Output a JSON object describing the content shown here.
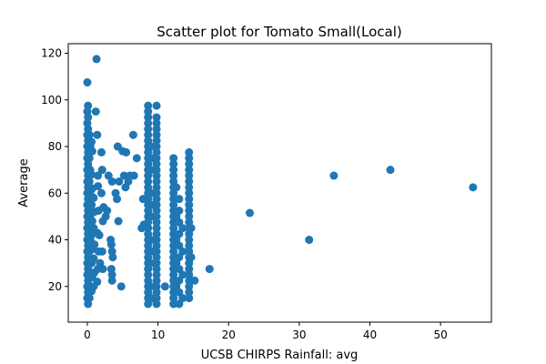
{
  "chart_data": {
    "type": "scatter",
    "title": "Scatter plot for Tomato Small(Local)",
    "xlabel": "UCSB CHIRPS Rainfall: avg",
    "ylabel": "Average",
    "xlim": [
      -2.7,
      57.2
    ],
    "ylim": [
      4.7,
      124.1
    ],
    "xticks": [
      0,
      10,
      20,
      30,
      40,
      50
    ],
    "yticks": [
      20,
      40,
      60,
      80,
      100,
      120
    ],
    "xtick_labels": [
      "0",
      "10",
      "20",
      "30",
      "40",
      "50"
    ],
    "ytick_labels": [
      "20",
      "40",
      "60",
      "80",
      "100",
      "120"
    ],
    "grid": false,
    "legend": "none",
    "marker_color": "#1f77b4",
    "series": [
      {
        "points": [
          [
            0.0,
            107.5
          ],
          [
            0.1,
            97.5
          ],
          [
            0.0,
            95.0
          ],
          [
            0.1,
            92.5
          ],
          [
            0.0,
            90.0
          ],
          [
            0.1,
            87.5
          ],
          [
            0.0,
            85.0
          ],
          [
            0.1,
            82.5
          ],
          [
            0.0,
            80.0
          ],
          [
            0.1,
            77.5
          ],
          [
            0.0,
            75.0
          ],
          [
            0.1,
            72.5
          ],
          [
            0.0,
            70.0
          ],
          [
            0.1,
            67.5
          ],
          [
            0.0,
            65.0
          ],
          [
            0.1,
            62.5
          ],
          [
            0.0,
            60.0
          ],
          [
            0.1,
            57.5
          ],
          [
            0.0,
            55.0
          ],
          [
            0.1,
            52.5
          ],
          [
            0.0,
            50.0
          ],
          [
            0.1,
            47.5
          ],
          [
            0.0,
            45.0
          ],
          [
            0.1,
            42.5
          ],
          [
            0.0,
            40.0
          ],
          [
            0.1,
            37.5
          ],
          [
            0.0,
            35.0
          ],
          [
            0.1,
            32.5
          ],
          [
            0.0,
            30.0
          ],
          [
            0.1,
            27.5
          ],
          [
            0.0,
            25.0
          ],
          [
            0.1,
            22.5
          ],
          [
            0.0,
            20.0
          ],
          [
            0.1,
            17.5
          ],
          [
            0.0,
            15.0
          ],
          [
            0.1,
            12.5
          ],
          [
            0.3,
            85.0
          ],
          [
            0.4,
            80.0
          ],
          [
            0.3,
            75.0
          ],
          [
            0.4,
            70.0
          ],
          [
            0.3,
            65.0
          ],
          [
            0.4,
            60.0
          ],
          [
            0.3,
            55.0
          ],
          [
            0.4,
            50.0
          ],
          [
            0.3,
            45.0
          ],
          [
            0.4,
            40.0
          ],
          [
            0.3,
            35.0
          ],
          [
            0.4,
            30.0
          ],
          [
            0.3,
            25.0
          ],
          [
            0.4,
            20.0
          ],
          [
            0.3,
            15.0
          ],
          [
            0.6,
            82.0
          ],
          [
            0.7,
            78.0
          ],
          [
            0.6,
            68.0
          ],
          [
            0.7,
            62.0
          ],
          [
            0.6,
            55.0
          ],
          [
            0.7,
            48.0
          ],
          [
            0.6,
            42.0
          ],
          [
            0.7,
            36.0
          ],
          [
            0.6,
            30.0
          ],
          [
            0.7,
            24.0
          ],
          [
            0.6,
            18.0
          ],
          [
            0.9,
            58.0
          ],
          [
            1.0,
            52.0
          ],
          [
            0.9,
            45.0
          ],
          [
            1.0,
            38.0
          ],
          [
            0.9,
            32.0
          ],
          [
            1.0,
            26.0
          ],
          [
            0.9,
            20.0
          ],
          [
            1.3,
            117.5
          ],
          [
            1.2,
            95.0
          ],
          [
            1.4,
            85.0
          ],
          [
            1.5,
            67.5
          ],
          [
            1.5,
            63.0
          ],
          [
            1.6,
            52.5
          ],
          [
            1.4,
            43.0
          ],
          [
            1.6,
            35.0
          ],
          [
            1.5,
            27.5
          ],
          [
            1.4,
            22.0
          ],
          [
            1.7,
            42.0
          ],
          [
            1.8,
            30.0
          ],
          [
            2.0,
            77.5
          ],
          [
            2.1,
            70.0
          ],
          [
            2.0,
            60.0
          ],
          [
            2.3,
            54.0
          ],
          [
            2.2,
            48.0
          ],
          [
            2.1,
            35.0
          ],
          [
            2.2,
            27.5
          ],
          [
            2.6,
            50.0
          ],
          [
            2.8,
            52.5
          ],
          [
            3.0,
            67.5
          ],
          [
            3.3,
            40.0
          ],
          [
            3.4,
            38.0
          ],
          [
            3.5,
            65.0
          ],
          [
            3.5,
            35.0
          ],
          [
            3.6,
            32.5
          ],
          [
            3.4,
            27.5
          ],
          [
            3.5,
            25.0
          ],
          [
            3.5,
            22.5
          ],
          [
            4.0,
            60.0
          ],
          [
            4.2,
            57.5
          ],
          [
            4.3,
            80.0
          ],
          [
            4.4,
            48.0
          ],
          [
            4.5,
            65.0
          ],
          [
            4.8,
            20.0
          ],
          [
            5.0,
            78.0
          ],
          [
            5.2,
            67.5
          ],
          [
            5.5,
            77.5
          ],
          [
            5.4,
            62.5
          ],
          [
            5.8,
            65.0
          ],
          [
            6.0,
            67.5
          ],
          [
            6.5,
            85.0
          ],
          [
            6.6,
            67.5
          ],
          [
            7.0,
            75.0
          ],
          [
            7.7,
            45.0
          ],
          [
            8.0,
            46.5
          ],
          [
            7.9,
            57.5
          ],
          [
            8.6,
            97.5
          ],
          [
            8.6,
            95.0
          ],
          [
            8.6,
            92.5
          ],
          [
            8.6,
            90.0
          ],
          [
            8.6,
            87.5
          ],
          [
            8.6,
            85.0
          ],
          [
            8.6,
            82.5
          ],
          [
            8.6,
            80.0
          ],
          [
            8.6,
            77.5
          ],
          [
            8.6,
            75.0
          ],
          [
            8.6,
            72.5
          ],
          [
            8.6,
            70.0
          ],
          [
            8.6,
            67.5
          ],
          [
            8.6,
            65.0
          ],
          [
            8.6,
            62.5
          ],
          [
            8.6,
            60.0
          ],
          [
            8.6,
            57.5
          ],
          [
            8.6,
            55.0
          ],
          [
            8.6,
            52.5
          ],
          [
            8.6,
            50.0
          ],
          [
            8.6,
            47.5
          ],
          [
            8.6,
            45.0
          ],
          [
            8.6,
            42.5
          ],
          [
            8.6,
            40.0
          ],
          [
            8.6,
            37.5
          ],
          [
            8.6,
            35.0
          ],
          [
            8.6,
            32.5
          ],
          [
            8.6,
            30.0
          ],
          [
            8.6,
            27.5
          ],
          [
            8.6,
            25.0
          ],
          [
            8.6,
            22.5
          ],
          [
            8.6,
            20.0
          ],
          [
            8.6,
            17.5
          ],
          [
            8.6,
            15.0
          ],
          [
            8.6,
            12.5
          ],
          [
            9.0,
            80.0
          ],
          [
            9.0,
            70.0
          ],
          [
            9.0,
            60.0
          ],
          [
            9.0,
            50.0
          ],
          [
            9.0,
            40.0
          ],
          [
            9.0,
            30.0
          ],
          [
            9.0,
            20.0
          ],
          [
            9.3,
            75.0
          ],
          [
            9.3,
            55.0
          ],
          [
            9.3,
            35.0
          ],
          [
            9.3,
            15.0
          ],
          [
            9.8,
            97.5
          ],
          [
            9.8,
            92.5
          ],
          [
            9.8,
            90.0
          ],
          [
            9.8,
            87.5
          ],
          [
            9.8,
            85.0
          ],
          [
            9.8,
            82.5
          ],
          [
            9.8,
            80.0
          ],
          [
            9.8,
            77.5
          ],
          [
            9.8,
            75.0
          ],
          [
            9.8,
            72.5
          ],
          [
            9.8,
            70.0
          ],
          [
            9.8,
            67.5
          ],
          [
            9.8,
            65.0
          ],
          [
            9.8,
            62.5
          ],
          [
            9.8,
            60.0
          ],
          [
            9.8,
            57.5
          ],
          [
            9.8,
            55.0
          ],
          [
            9.8,
            52.5
          ],
          [
            9.8,
            50.0
          ],
          [
            9.8,
            47.5
          ],
          [
            9.8,
            45.0
          ],
          [
            9.8,
            42.5
          ],
          [
            9.8,
            40.0
          ],
          [
            9.8,
            37.5
          ],
          [
            9.8,
            35.0
          ],
          [
            9.8,
            32.5
          ],
          [
            9.8,
            30.0
          ],
          [
            9.8,
            27.5
          ],
          [
            9.8,
            25.0
          ],
          [
            9.8,
            22.5
          ],
          [
            9.8,
            20.0
          ],
          [
            9.8,
            17.5
          ],
          [
            9.8,
            15.0
          ],
          [
            9.8,
            12.5
          ],
          [
            11.0,
            20.0
          ],
          [
            12.2,
            75.0
          ],
          [
            12.2,
            72.5
          ],
          [
            12.2,
            70.0
          ],
          [
            12.2,
            67.5
          ],
          [
            12.2,
            65.0
          ],
          [
            12.2,
            62.5
          ],
          [
            12.2,
            60.0
          ],
          [
            12.2,
            57.5
          ],
          [
            12.2,
            55.0
          ],
          [
            12.2,
            52.5
          ],
          [
            12.2,
            50.0
          ],
          [
            12.2,
            47.5
          ],
          [
            12.2,
            45.0
          ],
          [
            12.2,
            42.5
          ],
          [
            12.2,
            40.0
          ],
          [
            12.2,
            37.5
          ],
          [
            12.2,
            35.0
          ],
          [
            12.2,
            32.5
          ],
          [
            12.2,
            30.0
          ],
          [
            12.2,
            27.5
          ],
          [
            12.2,
            25.0
          ],
          [
            12.2,
            22.5
          ],
          [
            12.2,
            20.0
          ],
          [
            12.2,
            17.5
          ],
          [
            12.2,
            15.0
          ],
          [
            12.2,
            12.5
          ],
          [
            12.6,
            62.5
          ],
          [
            12.6,
            50.0
          ],
          [
            12.6,
            40.0
          ],
          [
            12.6,
            30.0
          ],
          [
            12.6,
            20.0
          ],
          [
            13.0,
            57.5
          ],
          [
            13.0,
            52.5
          ],
          [
            13.0,
            47.5
          ],
          [
            13.0,
            42.5
          ],
          [
            13.0,
            37.5
          ],
          [
            13.0,
            32.5
          ],
          [
            13.0,
            27.5
          ],
          [
            13.0,
            22.5
          ],
          [
            13.0,
            17.5
          ],
          [
            13.0,
            12.5
          ],
          [
            13.5,
            45.0
          ],
          [
            13.5,
            35.0
          ],
          [
            13.5,
            25.0
          ],
          [
            13.5,
            15.0
          ],
          [
            14.4,
            77.5
          ],
          [
            14.4,
            75.0
          ],
          [
            14.4,
            72.5
          ],
          [
            14.4,
            70.0
          ],
          [
            14.4,
            67.5
          ],
          [
            14.4,
            65.0
          ],
          [
            14.4,
            62.5
          ],
          [
            14.4,
            60.0
          ],
          [
            14.4,
            57.5
          ],
          [
            14.4,
            55.0
          ],
          [
            14.4,
            52.5
          ],
          [
            14.4,
            50.0
          ],
          [
            14.4,
            47.5
          ],
          [
            14.4,
            45.0
          ],
          [
            14.4,
            42.5
          ],
          [
            14.4,
            40.0
          ],
          [
            14.4,
            37.5
          ],
          [
            14.4,
            35.0
          ],
          [
            14.4,
            32.5
          ],
          [
            14.4,
            30.0
          ],
          [
            14.4,
            27.5
          ],
          [
            14.4,
            25.0
          ],
          [
            14.4,
            22.5
          ],
          [
            14.4,
            20.0
          ],
          [
            14.4,
            17.5
          ],
          [
            14.4,
            15.0
          ],
          [
            14.7,
            45.0
          ],
          [
            14.7,
            32.5
          ],
          [
            14.7,
            22.5
          ],
          [
            15.2,
            22.5
          ],
          [
            17.3,
            27.5
          ],
          [
            23.0,
            51.5
          ],
          [
            31.4,
            40.0
          ],
          [
            34.9,
            67.5
          ],
          [
            42.9,
            70.0
          ],
          [
            54.6,
            62.5
          ]
        ]
      }
    ]
  }
}
